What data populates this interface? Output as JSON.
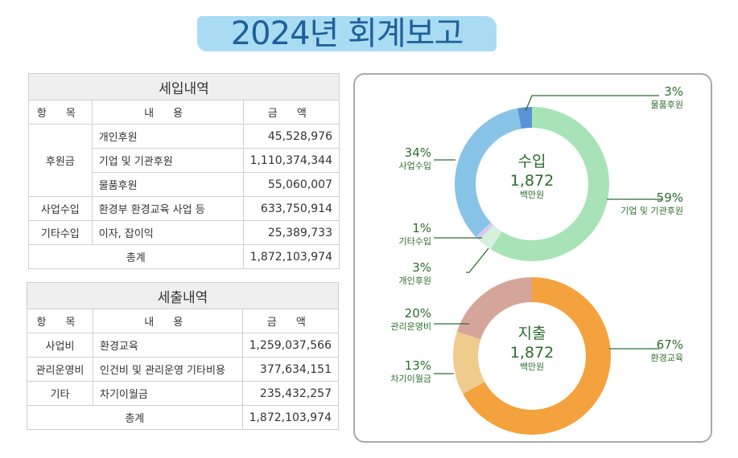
{
  "title": "2024년 회계보고",
  "headers": {
    "item": "항  목",
    "content": "내  용",
    "amount": "금  액"
  },
  "income": {
    "title": "세입내역",
    "rows": [
      {
        "group": "후원금",
        "content": "개인후원",
        "amount": "45,528,976"
      },
      {
        "group": "",
        "content": "기업 및 기관후원",
        "amount": "1,110,374,344"
      },
      {
        "group": "",
        "content": "물품후원",
        "amount": "55,060,007"
      },
      {
        "group": "사업수입",
        "content": "환경부 환경교육 사업 등",
        "amount": "633,750,914"
      },
      {
        "group": "기타수입",
        "content": "이자, 잡이익",
        "amount": "25,389,733"
      }
    ],
    "total_label": "총계",
    "total": "1,872,103,974"
  },
  "expense": {
    "title": "세출내역",
    "rows": [
      {
        "group": "사업비",
        "content": "환경교육",
        "amount": "1,259,037,566"
      },
      {
        "group": "관리운영비",
        "content": "인건비 및 관리운영 기타비용",
        "amount": "377,634,151"
      },
      {
        "group": "기타",
        "content": "차기이월금",
        "amount": "235,432,257"
      }
    ],
    "total_label": "총계",
    "total": "1,872,103,974"
  },
  "chart_data": [
    {
      "type": "pie",
      "center": {
        "title": "수입",
        "value": "1,872",
        "unit": "백만원"
      },
      "slices": [
        {
          "label": "기업 및 기관후원",
          "pct_label": "59%",
          "value": 59,
          "color": "#a8e3b8"
        },
        {
          "label": "개인후원",
          "pct_label": "3%",
          "value": 3,
          "color": "#d5f0dc"
        },
        {
          "label": "기타수입",
          "pct_label": "1%",
          "value": 1,
          "color": "#d9c9f0"
        },
        {
          "label": "사업수입",
          "pct_label": "34%",
          "value": 34,
          "color": "#88c3e8"
        },
        {
          "label": "물품후원",
          "pct_label": "3%",
          "value": 3,
          "color": "#5a93d6"
        }
      ]
    },
    {
      "type": "pie",
      "center": {
        "title": "지출",
        "value": "1,872",
        "unit": "백만원"
      },
      "slices": [
        {
          "label": "환경교육",
          "pct_label": "67%",
          "value": 67,
          "color": "#f3a23d"
        },
        {
          "label": "차기이월금",
          "pct_label": "13%",
          "value": 13,
          "color": "#efcb8d"
        },
        {
          "label": "관리운영비",
          "pct_label": "20%",
          "value": 20,
          "color": "#d6a59a"
        }
      ]
    }
  ],
  "colors": {
    "title_band": "#a9dcf3",
    "title_text": "#1f5f9a",
    "label_text": "#2c6e2c",
    "leader": "#2c6e2c"
  }
}
